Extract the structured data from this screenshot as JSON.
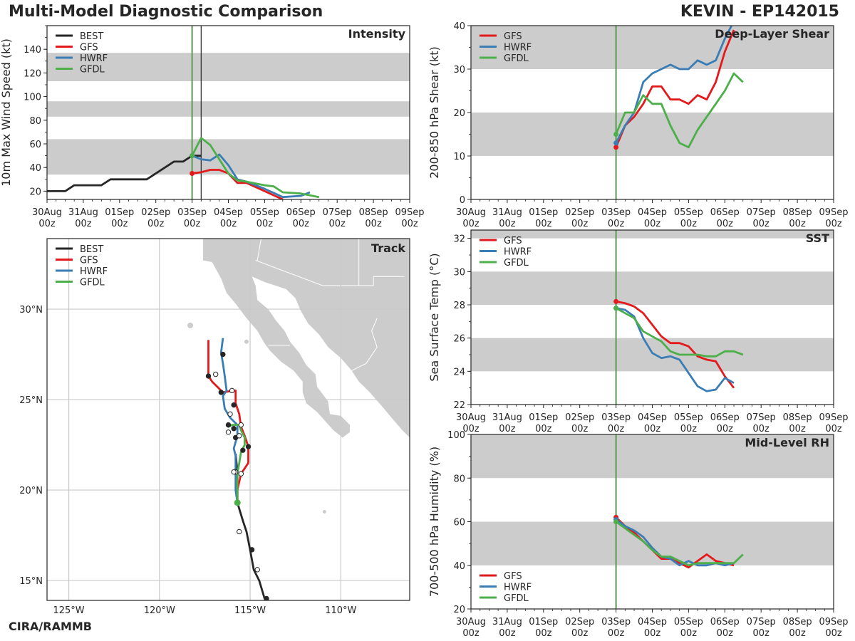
{
  "header": {
    "title": "Multi-Model Diagnostic Comparison",
    "storm": "KEVIN - EP142015",
    "credit": "CIRA/RAMMB"
  },
  "colors": {
    "BEST": "#262626",
    "GFS": "#e31a1c",
    "HWRF": "#3a7db5",
    "GFDL": "#4daf4a",
    "band": "#cccccc",
    "land": "#cccccc",
    "grid": "#cccccc",
    "init_line": "#5a9a52"
  },
  "time_axis": {
    "ticks": [
      "30Aug\n00z",
      "31Aug\n00z",
      "01Sep\n00z",
      "02Sep\n00z",
      "03Sep\n00z",
      "04Sep\n00z",
      "05Sep\n00z",
      "06Sep\n00z",
      "07Sep\n00z",
      "08Sep\n00z",
      "09Sep\n00z"
    ],
    "note": "x values are days since 30Aug 00z"
  },
  "chart_data": [
    {
      "id": "intensity",
      "type": "line",
      "panel_label": "Intensity",
      "ylabel": "10m Max Wind Speed (kt)",
      "xlim": [
        0,
        10
      ],
      "ylim": [
        13,
        160
      ],
      "yticks": [
        20,
        40,
        60,
        80,
        100,
        120,
        140
      ],
      "ylabels": [
        "20",
        "40",
        "60",
        "80",
        "100",
        "120",
        "140"
      ],
      "bands": [
        [
          34,
          64
        ],
        [
          83,
          96
        ],
        [
          113,
          137
        ]
      ],
      "legend": [
        "BEST",
        "GFS",
        "HWRF",
        "GFDL"
      ],
      "legend_position": "top-left",
      "vlines": [
        {
          "x": 4.0,
          "color": "init_line"
        },
        {
          "x": 4.25,
          "color": "BEST"
        }
      ],
      "series": [
        {
          "name": "BEST",
          "x": [
            0,
            0.5,
            0.75,
            1,
            1.5,
            1.75,
            2,
            2.5,
            3,
            3.5,
            3.75,
            4,
            4.25,
            4.5,
            4.75,
            5,
            5.25
          ],
          "y": [
            20,
            20,
            25,
            25,
            25,
            30,
            30,
            30,
            30,
            30,
            30,
            30,
            45,
            45,
            45,
            50,
            50
          ],
          "note": "see script for corrected x"
        },
        {
          "name": "GFS",
          "x": [
            4.0,
            4.25,
            4.5,
            4.75,
            5.0,
            5.25,
            5.5,
            6.0,
            6.5
          ],
          "y": [
            35,
            36,
            38,
            38,
            35,
            27,
            27,
            20,
            13
          ]
        },
        {
          "name": "HWRF",
          "x": [
            4.0,
            4.25,
            4.5,
            4.75,
            5.0,
            5.25,
            5.5,
            6.0,
            6.5,
            7.0,
            7.25
          ],
          "y": [
            50,
            47,
            46,
            51,
            42,
            30,
            28,
            22,
            15,
            16,
            19
          ]
        },
        {
          "name": "GFDL",
          "x": [
            4.0,
            4.25,
            4.5,
            4.75,
            5.0,
            5.25,
            5.5,
            6.0,
            6.25,
            6.5,
            7.0,
            7.5
          ],
          "y": [
            50,
            65,
            59,
            47,
            35,
            29,
            28,
            25,
            24,
            19,
            18,
            15
          ]
        }
      ]
    },
    {
      "id": "shear",
      "type": "line",
      "panel_label": "Deep-Layer Shear",
      "ylabel": "200-850 hPa Shear (kt)",
      "xlim": [
        0,
        10
      ],
      "ylim": [
        0,
        40
      ],
      "yticks": [
        0,
        10,
        20,
        30,
        40
      ],
      "ylabels": [
        "0",
        "10",
        "20",
        "30",
        "40"
      ],
      "bands": [
        [
          10,
          20
        ],
        [
          30,
          40
        ]
      ],
      "legend": [
        "GFS",
        "HWRF",
        "GFDL"
      ],
      "legend_position": "top-left",
      "vlines": [
        {
          "x": 4.0,
          "color": "init_line"
        }
      ],
      "series": [
        {
          "name": "GFS",
          "x": [
            4.0,
            4.25,
            4.5,
            4.75,
            5.0,
            5.25,
            5.5,
            5.75,
            6.0,
            6.25,
            6.5,
            6.75,
            7.0,
            7.25
          ],
          "y": [
            12,
            17,
            19,
            22,
            26,
            26,
            23,
            23,
            22,
            24,
            23,
            27,
            34,
            39
          ]
        },
        {
          "name": "HWRF",
          "x": [
            4.0,
            4.25,
            4.5,
            4.75,
            5.0,
            5.25,
            5.5,
            5.75,
            6.0,
            6.25,
            6.5,
            6.75,
            7.0,
            7.25
          ],
          "y": [
            13,
            17,
            20,
            27,
            29,
            30,
            31,
            30,
            30,
            32,
            31,
            32,
            37,
            41
          ]
        },
        {
          "name": "GFDL",
          "x": [
            4.0,
            4.25,
            4.5,
            4.75,
            5.0,
            5.25,
            5.5,
            5.75,
            6.0,
            6.25,
            6.5,
            6.75,
            7.0,
            7.25,
            7.5
          ],
          "y": [
            15,
            20,
            20,
            24,
            22,
            22,
            17,
            13,
            12,
            16,
            19,
            22,
            25,
            29,
            27
          ]
        }
      ]
    },
    {
      "id": "sst",
      "type": "line",
      "panel_label": "SST",
      "ylabel": "Sea Surface Temp (°C)",
      "xlim": [
        0,
        10
      ],
      "ylim": [
        22,
        32.5
      ],
      "yticks": [
        22,
        24,
        26,
        28,
        30,
        32
      ],
      "ylabels": [
        "22",
        "24",
        "26",
        "28",
        "30",
        "32"
      ],
      "bands": [
        [
          24,
          26
        ],
        [
          28,
          30
        ],
        [
          32,
          33
        ]
      ],
      "legend": [
        "GFS",
        "HWRF",
        "GFDL"
      ],
      "legend_position": "top-left",
      "vlines": [
        {
          "x": 4.0,
          "color": "init_line"
        }
      ],
      "series": [
        {
          "name": "GFS",
          "x": [
            4.0,
            4.25,
            4.5,
            4.75,
            5.0,
            5.25,
            5.5,
            5.75,
            6.0,
            6.25,
            6.5,
            6.75,
            7.0,
            7.25
          ],
          "y": [
            28.2,
            28.1,
            27.9,
            27.5,
            26.8,
            26.1,
            25.7,
            25.7,
            25.5,
            24.9,
            24.7,
            24.6,
            23.7,
            23.0
          ]
        },
        {
          "name": "HWRF",
          "x": [
            4.0,
            4.25,
            4.5,
            4.75,
            5.0,
            5.25,
            5.5,
            5.75,
            6.0,
            6.25,
            6.5,
            6.75,
            7.0,
            7.25
          ],
          "y": [
            27.8,
            27.7,
            27.3,
            26.0,
            25.1,
            24.8,
            24.9,
            24.7,
            23.9,
            23.1,
            22.8,
            22.9,
            23.6,
            23.3
          ]
        },
        {
          "name": "GFDL",
          "x": [
            4.0,
            4.25,
            4.5,
            4.75,
            5.0,
            5.25,
            5.5,
            5.75,
            6.0,
            6.25,
            6.5,
            6.75,
            7.0,
            7.25,
            7.5
          ],
          "y": [
            27.8,
            27.5,
            27.2,
            26.4,
            26.1,
            25.8,
            25.2,
            25.0,
            25.0,
            25.0,
            24.9,
            24.9,
            25.2,
            25.2,
            25.0
          ]
        }
      ]
    },
    {
      "id": "rh",
      "type": "line",
      "panel_label": "Mid-Level RH",
      "ylabel": "700-500 hPa Humidity (%)",
      "xlim": [
        0,
        10
      ],
      "ylim": [
        20,
        100
      ],
      "yticks": [
        20,
        40,
        60,
        80,
        100
      ],
      "ylabels": [
        "20",
        "40",
        "60",
        "80",
        "100"
      ],
      "bands": [
        [
          40,
          60
        ],
        [
          80,
          100
        ]
      ],
      "legend": [
        "GFS",
        "HWRF",
        "GFDL"
      ],
      "legend_position": "bottom-left",
      "vlines": [
        {
          "x": 4.0,
          "color": "init_line"
        }
      ],
      "series": [
        {
          "name": "GFS",
          "x": [
            4.0,
            4.25,
            4.5,
            4.75,
            5.0,
            5.25,
            5.5,
            5.75,
            6.0,
            6.25,
            6.5,
            6.75,
            7.0,
            7.25
          ],
          "y": [
            62,
            58,
            55,
            51,
            47,
            43,
            43,
            41,
            39,
            42,
            45,
            42,
            41,
            40
          ]
        },
        {
          "name": "HWRF",
          "x": [
            4.0,
            4.25,
            4.5,
            4.75,
            5.0,
            5.25,
            5.5,
            5.75,
            6.0,
            6.25,
            6.5,
            6.75,
            7.0,
            7.25
          ],
          "y": [
            61,
            58,
            56,
            53,
            48,
            44,
            43,
            40,
            42,
            40,
            40,
            41,
            40,
            41
          ]
        },
        {
          "name": "GFDL",
          "x": [
            4.0,
            4.25,
            4.5,
            4.75,
            5.0,
            5.25,
            5.5,
            5.75,
            6.0,
            6.25,
            6.5,
            6.75,
            7.0,
            7.25,
            7.5
          ],
          "y": [
            60,
            57,
            54,
            51,
            47,
            44,
            44,
            42,
            40,
            41,
            41,
            41,
            41,
            41,
            45
          ]
        }
      ]
    },
    {
      "id": "track",
      "type": "scatter",
      "panel_label": "Track",
      "xlim": [
        -126.2,
        -106.2
      ],
      "ylim": [
        13.9,
        33.9
      ],
      "xticks": [
        -125,
        -120,
        -115,
        -110
      ],
      "xlabels": [
        "125°W",
        "120°W",
        "115°W",
        "110°W"
      ],
      "yticks": [
        15,
        20,
        25,
        30
      ],
      "ylabels": [
        "15°N",
        "20°N",
        "25°N",
        "30°N"
      ],
      "legend": [
        "BEST",
        "GFS",
        "HWRF",
        "GFDL"
      ],
      "legend_position": "top-left",
      "series": [
        {
          "name": "BEST",
          "lon": [
            -114.2,
            -114.5,
            -114.8,
            -115.0,
            -115.2,
            -115.4,
            -115.7,
            -115.7,
            -115.7,
            -115.8
          ],
          "lat": [
            14.0,
            15.0,
            15.6,
            16.7,
            17.7,
            18.3,
            19.3,
            20.0,
            21.0,
            22.0
          ]
        },
        {
          "name": "GFS",
          "lon": [
            -115.7,
            -115.7,
            -115.5,
            -115.1,
            -115.1,
            -115.3,
            -115.5,
            -115.6,
            -115.8,
            -115.8,
            -115.9,
            -116.5,
            -117.1,
            -117.3,
            -117.3
          ],
          "lat": [
            19.3,
            20.0,
            20.9,
            21.5,
            22.4,
            23.0,
            23.5,
            24.2,
            24.8,
            25.5,
            25.5,
            25.4,
            26.0,
            26.3,
            28.3
          ]
        },
        {
          "name": "HWRF",
          "lon": [
            -115.7,
            -115.8,
            -115.8,
            -115.8,
            -115.9,
            -115.7,
            -115.7,
            -116.1,
            -116.4,
            -116.5,
            -116.3,
            -116.4,
            -116.5,
            -116.6,
            -116.5
          ],
          "lat": [
            19.3,
            20.0,
            20.9,
            21.9,
            22.3,
            23.0,
            23.6,
            24.0,
            24.5,
            25.2,
            25.5,
            26.3,
            27.0,
            27.6,
            28.4
          ]
        },
        {
          "name": "GFDL",
          "lon": [
            -115.7,
            -115.7,
            -115.7,
            -115.6,
            -115.5,
            -115.3,
            -115.3,
            -115.5,
            -115.6,
            -115.8,
            -115.8,
            -116.0,
            -116.2,
            -116.1
          ],
          "lat": [
            19.3,
            20.0,
            20.9,
            21.5,
            22.1,
            22.5,
            22.9,
            23.3,
            23.6,
            23.6,
            23.6,
            23.6,
            23.5,
            23.6
          ]
        }
      ],
      "markers": [
        {
          "lon": -114.1,
          "lat": 14.0,
          "fill": "BEST"
        },
        {
          "lon": -114.6,
          "lat": 15.6,
          "fill": "white"
        },
        {
          "lon": -114.9,
          "lat": 16.7,
          "fill": "BEST"
        },
        {
          "lon": -115.6,
          "lat": 17.7,
          "fill": "white"
        },
        {
          "lon": -115.7,
          "lat": 19.3,
          "fill": "GFDL"
        },
        {
          "lon": -115.5,
          "lat": 20.9,
          "fill": "white"
        },
        {
          "lon": -115.8,
          "lat": 21.0,
          "fill": "white"
        },
        {
          "lon": -115.9,
          "lat": 21.0,
          "fill": "white"
        },
        {
          "lon": -115.4,
          "lat": 22.2,
          "fill": "BEST"
        },
        {
          "lon": -115.1,
          "lat": 22.4,
          "fill": "BEST"
        },
        {
          "lon": -115.8,
          "lat": 22.9,
          "fill": "BEST"
        },
        {
          "lon": -115.6,
          "lat": 23.0,
          "fill": "white"
        },
        {
          "lon": -116.2,
          "lat": 23.2,
          "fill": "white"
        },
        {
          "lon": -115.9,
          "lat": 23.4,
          "fill": "BEST"
        },
        {
          "lon": -116.2,
          "lat": 23.6,
          "fill": "BEST"
        },
        {
          "lon": -115.5,
          "lat": 23.6,
          "fill": "white"
        },
        {
          "lon": -116.1,
          "lat": 24.2,
          "fill": "white"
        },
        {
          "lon": -115.9,
          "lat": 24.7,
          "fill": "BEST"
        },
        {
          "lon": -116.6,
          "lat": 25.4,
          "fill": "BEST"
        },
        {
          "lon": -116.0,
          "lat": 25.5,
          "fill": "white"
        },
        {
          "lon": -117.3,
          "lat": 26.3,
          "fill": "BEST"
        },
        {
          "lon": -116.9,
          "lat": 26.4,
          "fill": "white"
        },
        {
          "lon": -116.5,
          "lat": 27.5,
          "fill": "BEST"
        }
      ]
    }
  ]
}
